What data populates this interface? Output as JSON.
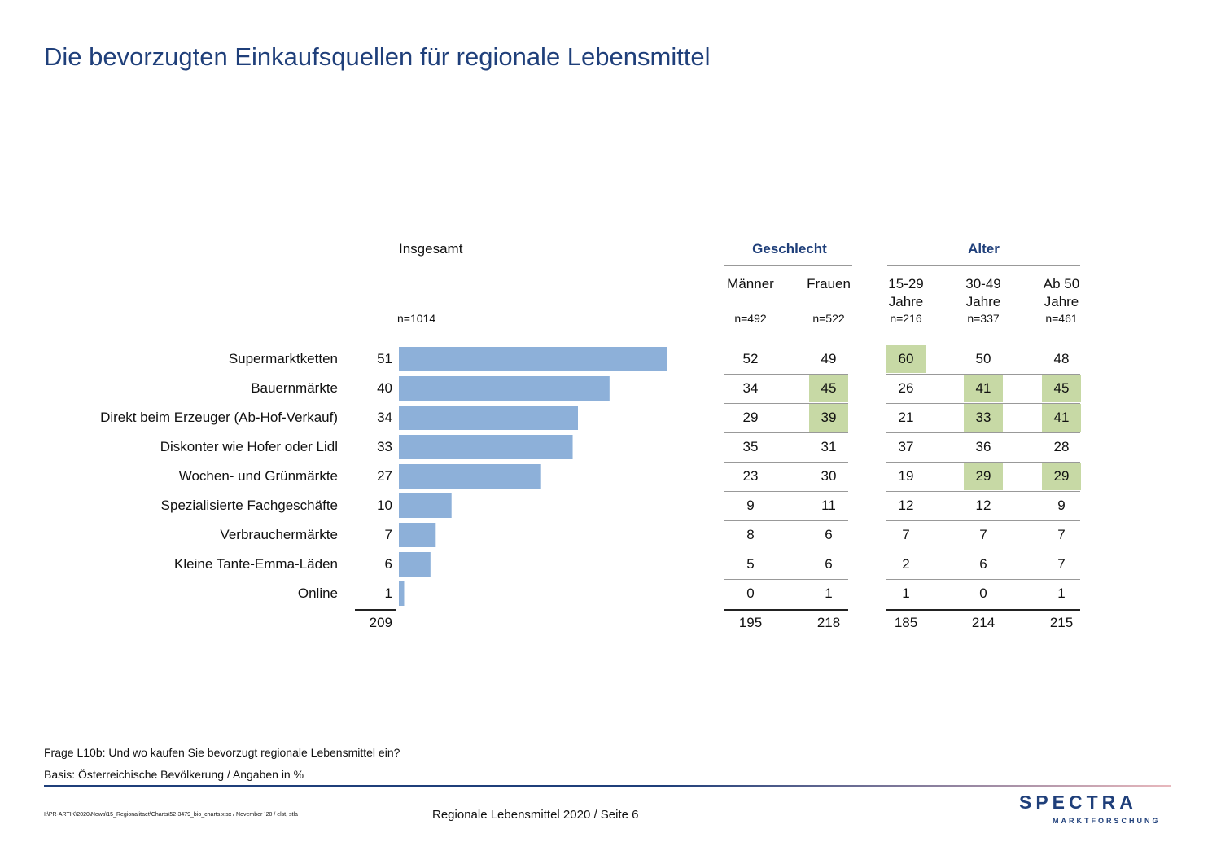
{
  "title": "Die bevorzugten Einkaufsquellen für regionale Lebensmittel",
  "headers": {
    "overall": "Insgesamt",
    "gender_group": "Geschlecht",
    "age_group": "Alter",
    "columns": [
      {
        "line1": "Männer",
        "line2": "",
        "n": "n=492"
      },
      {
        "line1": "Frauen",
        "line2": "",
        "n": "n=522"
      },
      {
        "line1": "15-29",
        "line2": "Jahre",
        "n": "n=216"
      },
      {
        "line1": "30-49",
        "line2": "Jahre",
        "n": "n=337"
      },
      {
        "line1": "Ab 50",
        "line2": "Jahre",
        "n": "n=461"
      }
    ],
    "overall_n": "n=1014"
  },
  "chart_data": {
    "type": "bar",
    "orientation": "horizontal",
    "categories": [
      "Supermarktketten",
      "Bauernmärkte",
      "Direkt beim Erzeuger (Ab-Hof-Verkauf)",
      "Diskonter wie Hofer oder Lidl",
      "Wochen- und Grünmärkte",
      "Spezialisierte Fachgeschäfte",
      "Verbrauchermärkte",
      "Kleine Tante-Emma-Läden",
      "Online"
    ],
    "values": [
      51,
      40,
      34,
      33,
      27,
      10,
      7,
      6,
      1
    ],
    "total": 209,
    "bar_color": "#8db0d9"
  },
  "table": {
    "rows": [
      [
        {
          "v": "52"
        },
        {
          "v": "49"
        },
        {
          "v": "60",
          "hl": true
        },
        {
          "v": "50"
        },
        {
          "v": "48"
        }
      ],
      [
        {
          "v": "34"
        },
        {
          "v": "45",
          "hl": true
        },
        {
          "v": "26"
        },
        {
          "v": "41",
          "hl": true
        },
        {
          "v": "45",
          "hl": true
        }
      ],
      [
        {
          "v": "29"
        },
        {
          "v": "39",
          "hl": true
        },
        {
          "v": "21"
        },
        {
          "v": "33",
          "hl": true
        },
        {
          "v": "41",
          "hl": true
        }
      ],
      [
        {
          "v": "35"
        },
        {
          "v": "31"
        },
        {
          "v": "37"
        },
        {
          "v": "36"
        },
        {
          "v": "28"
        }
      ],
      [
        {
          "v": "23"
        },
        {
          "v": "30"
        },
        {
          "v": "19"
        },
        {
          "v": "29",
          "hl": true
        },
        {
          "v": "29",
          "hl": true
        }
      ],
      [
        {
          "v": "9"
        },
        {
          "v": "11"
        },
        {
          "v": "12"
        },
        {
          "v": "12"
        },
        {
          "v": "9"
        }
      ],
      [
        {
          "v": "8"
        },
        {
          "v": "6"
        },
        {
          "v": "7"
        },
        {
          "v": "7"
        },
        {
          "v": "7"
        }
      ],
      [
        {
          "v": "5"
        },
        {
          "v": "6"
        },
        {
          "v": "2"
        },
        {
          "v": "6"
        },
        {
          "v": "7"
        }
      ],
      [
        {
          "v": "0"
        },
        {
          "v": "1"
        },
        {
          "v": "1"
        },
        {
          "v": "0"
        },
        {
          "v": "1"
        }
      ]
    ],
    "totals": [
      "195",
      "218",
      "185",
      "214",
      "215"
    ],
    "highlight_color": "#c7d9a5"
  },
  "footer": {
    "question": "Frage L10b: Und wo kaufen Sie bevorzugt regionale Lebensmittel ein?",
    "basis": "Basis: Österreichische Bevölkerung / Angaben in %",
    "path": "I:\\PR-ARTIK\\2020\\News\\15_Regionalitaet\\Charts\\52-3479_bio_charts.xlsx / November ´20 / elst, stla",
    "page_label": "Regionale Lebensmittel 2020  /  Seite  6",
    "logo_top": "SPECTRA",
    "logo_bottom": "MARKTFORSCHUNG"
  },
  "colors": {
    "title": "#1f3f7a",
    "bar": "#8db0d9",
    "highlight": "#c7d9a5",
    "logo": "#1f3f7a",
    "logo_accent": "#d0202a"
  }
}
